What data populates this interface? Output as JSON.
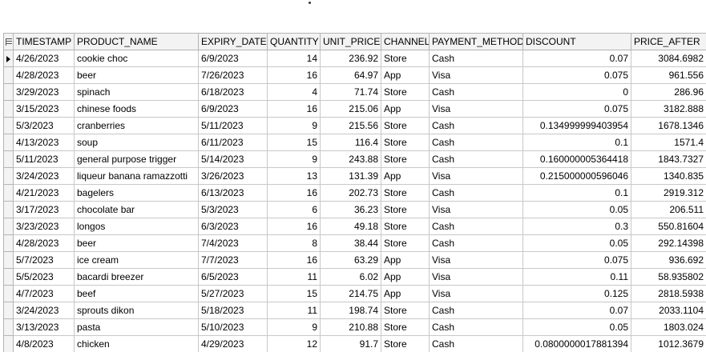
{
  "grid": {
    "columns": [
      "TIMESTAMP",
      "PRODUCT_NAME",
      "EXPIRY_DATE",
      "QUANTITY",
      "UNIT_PRICE",
      "CHANNEL",
      "PAYMENT_METHOD",
      "DISCOUNT",
      "PRICE_AFTER"
    ],
    "rows": [
      [
        "4/26/2023",
        "cookie choc",
        "6/9/2023",
        "14",
        "236.92",
        "Store",
        "Cash",
        "0.07",
        "3084.6982"
      ],
      [
        "4/28/2023",
        "beer",
        "7/26/2023",
        "16",
        "64.97",
        "App",
        "Visa",
        "0.075",
        "961.556"
      ],
      [
        "3/29/2023",
        "spinach",
        "6/18/2023",
        "4",
        "71.74",
        "Store",
        "Cash",
        "0",
        "286.96"
      ],
      [
        "3/15/2023",
        "chinese foods",
        "6/9/2023",
        "16",
        "215.06",
        "App",
        "Visa",
        "0.075",
        "3182.888"
      ],
      [
        "5/3/2023",
        "cranberries",
        "5/11/2023",
        "9",
        "215.56",
        "Store",
        "Cash",
        "0.134999999403954",
        "1678.1346"
      ],
      [
        "4/13/2023",
        "soup",
        "6/11/2023",
        "15",
        "116.4",
        "Store",
        "Cash",
        "0.1",
        "1571.4"
      ],
      [
        "5/11/2023",
        "general purpose trigger",
        "5/14/2023",
        "9",
        "243.88",
        "Store",
        "Cash",
        "0.160000005364418",
        "1843.7327"
      ],
      [
        "3/24/2023",
        "liqueur banana ramazzotti",
        "3/26/2023",
        "13",
        "131.39",
        "App",
        "Visa",
        "0.215000000596046",
        "1340.835"
      ],
      [
        "4/21/2023",
        "bagelers",
        "6/13/2023",
        "16",
        "202.73",
        "Store",
        "Cash",
        "0.1",
        "2919.312"
      ],
      [
        "3/17/2023",
        "chocolate bar",
        "5/3/2023",
        "6",
        "36.23",
        "Store",
        "Visa",
        "0.05",
        "206.511"
      ],
      [
        "3/23/2023",
        "longos",
        "6/3/2023",
        "16",
        "49.18",
        "Store",
        "Cash",
        "0.3",
        "550.81604"
      ],
      [
        "4/28/2023",
        "beer",
        "7/4/2023",
        "8",
        "38.44",
        "Store",
        "Cash",
        "0.05",
        "292.14398"
      ],
      [
        "5/7/2023",
        "ice cream",
        "7/7/2023",
        "16",
        "63.29",
        "App",
        "Visa",
        "0.075",
        "936.692"
      ],
      [
        "5/5/2023",
        "bacardi breezer",
        "6/5/2023",
        "11",
        "6.02",
        "App",
        "Visa",
        "0.11",
        "58.935802"
      ],
      [
        "4/7/2023",
        "beef",
        "5/27/2023",
        "15",
        "214.75",
        "App",
        "Visa",
        "0.125",
        "2818.5938"
      ],
      [
        "3/24/2023",
        "sprouts dikon",
        "5/18/2023",
        "11",
        "198.74",
        "Store",
        "Cash",
        "0.07",
        "2033.1104"
      ],
      [
        "3/13/2023",
        "pasta",
        "5/10/2023",
        "9",
        "210.88",
        "Store",
        "Cash",
        "0.05",
        "1803.024"
      ],
      [
        "4/8/2023",
        "chicken",
        "4/29/2023",
        "12",
        "91.7",
        "Store",
        "Cash",
        "0.0800000017881394",
        "1012.3679"
      ]
    ],
    "current_row_index": 0,
    "numeric_columns": [
      3,
      4,
      7,
      8
    ]
  }
}
